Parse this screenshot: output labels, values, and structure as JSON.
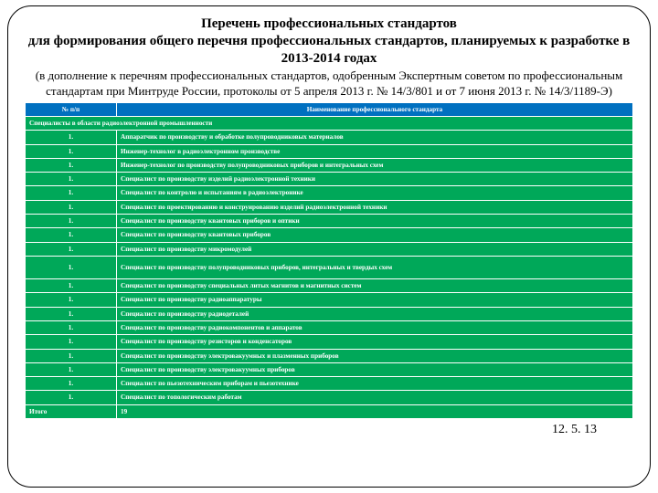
{
  "title": "Перечень профессиональных стандартов\nдля формирования общего перечня профессиональных стандартов, планируемых к разработке в 2013-2014 годах",
  "subtitle": "(в дополнение к перечням профессиональных стандартов, одобренным Экспертным советом по профессиональным стандартам при Минтруде России, протоколы от 5 апреля 2013 г. № 14/3/801 и от 7 июня 2013 г. № 14/3/1189-Э)",
  "header": {
    "c1": "№ п/п",
    "c2": "Наименование профессионального стандарта"
  },
  "section": "Специалисты в области радиоэлектронной промышленности",
  "rows": [
    {
      "n": "1.",
      "name": "Аппаратчик по производству и обработке полупроводниковых материалов"
    },
    {
      "n": "1.",
      "name": "Инженер-технолог в радиоэлектронном производстве"
    },
    {
      "n": "1.",
      "name": "Инженер-технолог по производству полупроводниковых приборов и интегральных схем"
    },
    {
      "n": "1.",
      "name": "Специалист по производству изделий радиоэлектронной техники"
    },
    {
      "n": "1.",
      "name": "Специалист по контролю и испытаниям в радиоэлектронике"
    },
    {
      "n": "1.",
      "name": "Специалист по проектированию и конструированию изделий радиоэлектронной техники"
    },
    {
      "n": "1.",
      "name": "Специалист по производству квантовых приборов и оптики"
    },
    {
      "n": "1.",
      "name": "Специалист по производству квантовых приборов"
    },
    {
      "n": "1.",
      "name": "Специалист по производству микромодулей"
    },
    {
      "n": "1.",
      "name": "Специалист по производству полупроводниковых приборов, интегральных и твердых схем"
    },
    {
      "n": "1.",
      "name": "Специалист по производству специальных литых магнитов и магнитных систем"
    },
    {
      "n": "1.",
      "name": "Специалист по производству радиоаппаратуры"
    },
    {
      "n": "1.",
      "name": "Специалист по производству радиодеталей"
    },
    {
      "n": "1.",
      "name": "Специалист по производству радиокомпонентов и аппаратов"
    },
    {
      "n": "1.",
      "name": "Специалист по производству резисторов и конденсаторов"
    },
    {
      "n": "1.",
      "name": "Специалист по производству электровакуумных и плазменных приборов"
    },
    {
      "n": "1.",
      "name": "Специалист по производству электровакуумных приборов"
    },
    {
      "n": "1.",
      "name": "Специалист по пьезотехническим приборам и пьезотехнике"
    },
    {
      "n": "1.",
      "name": "Специалист по топологическим работам"
    }
  ],
  "total": {
    "label": "Итого",
    "value": "19"
  },
  "footer": "12. 5. 13",
  "colors": {
    "header_bg": "#0070c0",
    "row_bg": "#00a859",
    "text": "#ffffff",
    "border": "#ffffff"
  }
}
